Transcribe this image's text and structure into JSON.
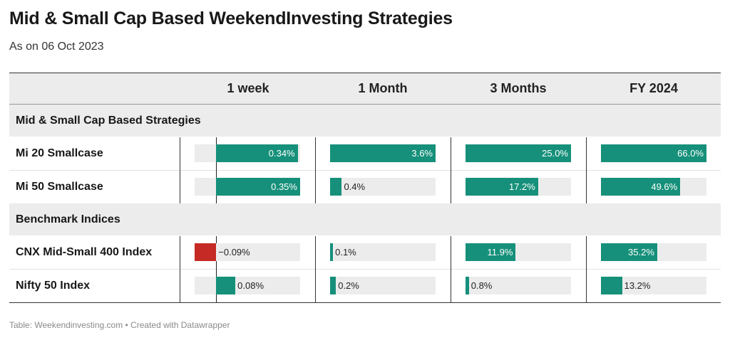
{
  "title": "Mid & Small Cap Based WeekendInvesting Strategies",
  "subtitle": "As on 06 Oct 2023",
  "footer": "Table: Weekendinvesting.com • Created with Datawrapper",
  "colors": {
    "positive": "#16907a",
    "negative": "#c52a24",
    "track": "#ececec"
  },
  "chart_data": {
    "type": "table",
    "columns": [
      "1 week",
      "1 Month",
      "3 Months",
      "FY 2024"
    ],
    "column_ranges": [
      [
        -0.09,
        0.35
      ],
      [
        0,
        3.6
      ],
      [
        0,
        25.0
      ],
      [
        0,
        66.0
      ]
    ],
    "groups": [
      {
        "label": "Mid & Small Cap Based Strategies",
        "rows": [
          {
            "label": "Mi 20 Smallcase",
            "values": [
              0.34,
              3.6,
              25.0,
              66.0
            ],
            "display": [
              "0.34%",
              "3.6%",
              "25.0%",
              "66.0%"
            ]
          },
          {
            "label": "Mi 50 Smallcase",
            "values": [
              0.35,
              0.4,
              17.2,
              49.6
            ],
            "display": [
              "0.35%",
              "0.4%",
              "17.2%",
              "49.6%"
            ]
          }
        ]
      },
      {
        "label": "Benchmark Indices",
        "rows": [
          {
            "label": "CNX Mid-Small 400 Index",
            "values": [
              -0.09,
              0.1,
              11.9,
              35.2
            ],
            "display": [
              "−0.09%",
              "0.1%",
              "11.9%",
              "35.2%"
            ]
          },
          {
            "label": "Nifty 50 Index",
            "values": [
              0.08,
              0.2,
              0.8,
              13.2
            ],
            "display": [
              "0.08%",
              "0.2%",
              "0.8%",
              "13.2%"
            ]
          }
        ]
      }
    ]
  }
}
